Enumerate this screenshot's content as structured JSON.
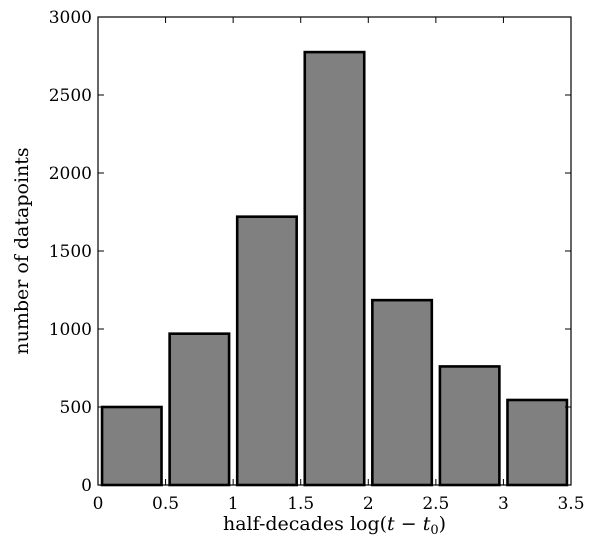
{
  "chart_data": {
    "type": "bar",
    "title": "",
    "xlabel": "half-decades log(t − t0)",
    "xlabel_parts": {
      "prefix": "half-decades log(",
      "var": "t",
      "op": " − ",
      "var2": "t",
      "sub": "0",
      "suffix": ")"
    },
    "ylabel": "number of datapoints",
    "xlim": [
      0,
      3.5
    ],
    "ylim": [
      0,
      3000
    ],
    "xticks": [
      "0",
      "0.5",
      "1",
      "1.5",
      "2",
      "2.5",
      "3",
      "3.5"
    ],
    "yticks": [
      "0",
      "500",
      "1000",
      "1500",
      "2000",
      "2500",
      "3000"
    ],
    "bar_color": "#808080",
    "bars": [
      {
        "x_start": 0.0,
        "x_end": 0.5,
        "value": 500
      },
      {
        "x_start": 0.5,
        "x_end": 1.0,
        "value": 970
      },
      {
        "x_start": 1.0,
        "x_end": 1.5,
        "value": 1720
      },
      {
        "x_start": 1.5,
        "x_end": 2.0,
        "value": 2775
      },
      {
        "x_start": 2.0,
        "x_end": 2.5,
        "value": 1185
      },
      {
        "x_start": 2.5,
        "x_end": 3.0,
        "value": 760
      },
      {
        "x_start": 3.0,
        "x_end": 3.5,
        "value": 545
      }
    ],
    "grid": false,
    "legend": "none"
  }
}
